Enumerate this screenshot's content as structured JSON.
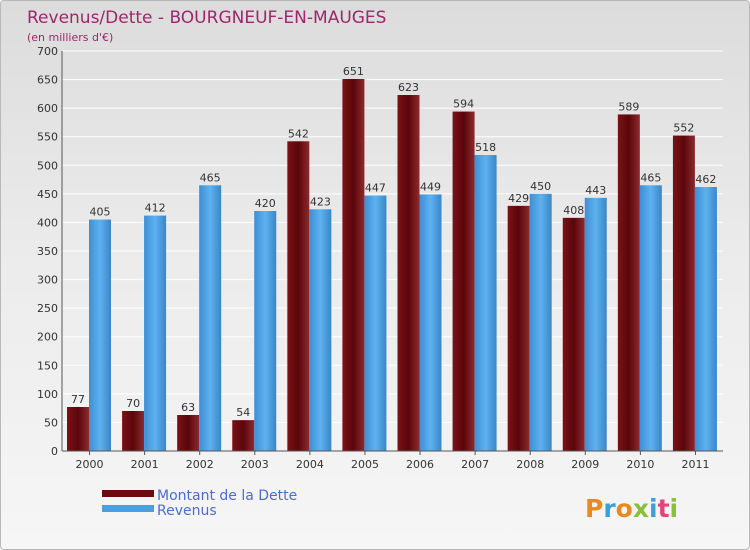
{
  "chart_data": {
    "type": "bar",
    "title": "Revenus/Dette - BOURGNEUF-EN-MAUGES",
    "subtitle": "(en milliers d'€)",
    "categories": [
      "2000",
      "2001",
      "2002",
      "2003",
      "2004",
      "2005",
      "2006",
      "2007",
      "2008",
      "2009",
      "2010",
      "2011"
    ],
    "series": [
      {
        "name": "Montant de la Dette",
        "color": "#6e0a0f",
        "values": [
          77,
          70,
          63,
          54,
          542,
          651,
          623,
          594,
          429,
          408,
          589,
          552
        ]
      },
      {
        "name": "Revenus",
        "color": "#4a9fe0",
        "values": [
          405,
          412,
          465,
          420,
          423,
          447,
          449,
          518,
          450,
          443,
          465,
          462
        ]
      }
    ],
    "ylim": [
      0,
      700
    ],
    "yticks": [
      0,
      50,
      100,
      150,
      200,
      250,
      300,
      350,
      400,
      450,
      500,
      550,
      600,
      650,
      700
    ],
    "grid": true,
    "legend_position": "bottom-left"
  },
  "logo": {
    "text": "Proxiti"
  }
}
